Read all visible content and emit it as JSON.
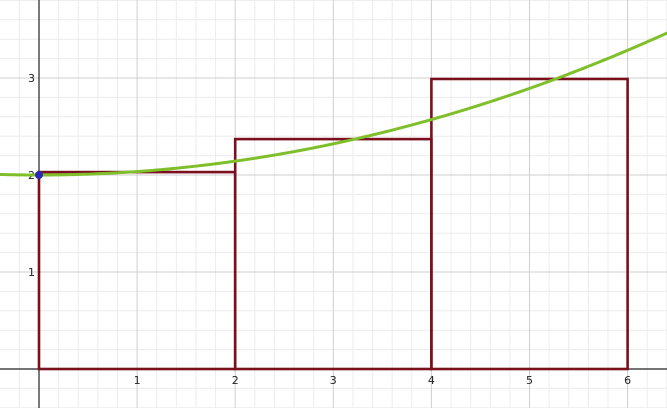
{
  "chart_data": {
    "type": "line",
    "title": "",
    "xlabel": "",
    "ylabel": "",
    "xlim": [
      -0.4,
      6.4
    ],
    "ylim": [
      -0.4,
      3.8
    ],
    "grid": true,
    "x_ticks": [
      "1",
      "2",
      "3",
      "4",
      "5",
      "6"
    ],
    "y_ticks": [
      "1",
      "2",
      "3"
    ],
    "curve": {
      "expression": "2 + x^2/28",
      "x_range": [
        -0.4,
        6.4
      ],
      "color": "#7fbf2a"
    },
    "rectangles": [
      {
        "x0": 0,
        "x1": 2,
        "height": 2.03
      },
      {
        "x0": 2,
        "x1": 4,
        "height": 2.37
      },
      {
        "x0": 4,
        "x1": 6,
        "height": 2.99
      }
    ],
    "rectangle_color": "#7a0f1e",
    "point": {
      "x": 0,
      "y": 2,
      "color": "#2b2bb0"
    }
  }
}
